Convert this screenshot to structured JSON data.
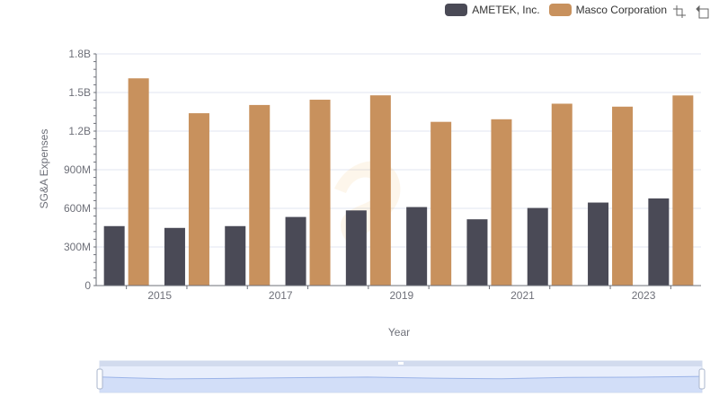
{
  "legend": {
    "items": [
      {
        "label": "AMETEK, Inc.",
        "color": "#4a4a56"
      },
      {
        "label": "Masco Corporation",
        "color": "#c8915d"
      }
    ]
  },
  "toolbox": {
    "icons": [
      "zoom-icon",
      "restore-icon"
    ]
  },
  "chart_data": {
    "type": "bar",
    "x": [
      2014,
      2015,
      2016,
      2017,
      2018,
      2019,
      2020,
      2021,
      2022,
      2023
    ],
    "x_tick_labels": [
      "2015",
      "2017",
      "2019",
      "2021",
      "2023"
    ],
    "series": [
      {
        "name": "AMETEK, Inc.",
        "color": "#4a4a56",
        "values": [
          462000000,
          448000000,
          462000000,
          533000000,
          584000000,
          610000000,
          515000000,
          603000000,
          645000000,
          677000000
        ]
      },
      {
        "name": "Masco Corporation",
        "color": "#c8915d",
        "values": [
          1610000000,
          1339000000,
          1403000000,
          1444000000,
          1478000000,
          1272000000,
          1292000000,
          1413000000,
          1390000000,
          1477000000
        ]
      }
    ],
    "xlabel": "Year",
    "ylabel": "SG&A Expenses",
    "ylim": [
      0,
      1800000000
    ],
    "y_ticks": [
      0,
      300000000,
      600000000,
      900000000,
      1200000000,
      1500000000,
      1800000000
    ],
    "y_tick_labels": [
      "0",
      "300M",
      "600M",
      "900M",
      "1.2B",
      "1.5B",
      "1.8B"
    ],
    "grid": true,
    "legend_position": "top-right",
    "data_zoom": {
      "start": 0,
      "end": 100
    }
  }
}
